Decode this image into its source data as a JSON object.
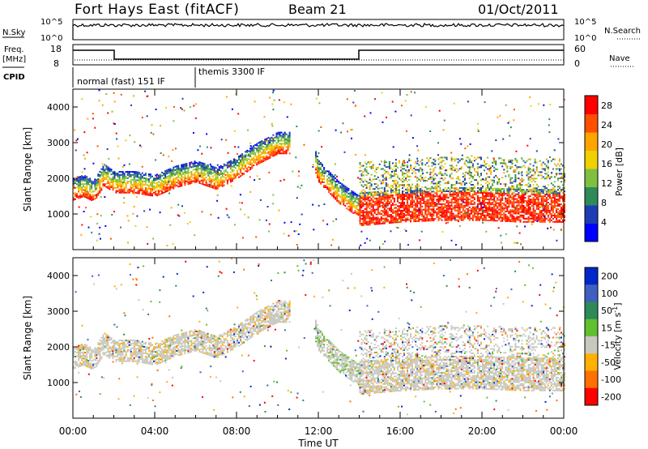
{
  "header": {
    "title": "Fort Hays East (fitACF)",
    "beam": "Beam 21",
    "date": "01/Oct/2011"
  },
  "params": {
    "nsky_label": "N.Sky",
    "nsky_top": "10^5",
    "nsky_bottom": "10^0",
    "nsky_right_top": "10^5",
    "nsky_right_bottom": "10^0",
    "nsearch_label": "N.Search",
    "freq_label": "Freq.",
    "freq_unit": "[MHz]",
    "freq_top": "18",
    "freq_bottom": "8",
    "nave_top": "60",
    "nave_bottom": "0",
    "nave_label": "Nave",
    "cpid_label": "CPID",
    "cpid_1": "normal (fast) 151 IF",
    "cpid_2": "themis 3300 IF"
  },
  "chart_data": [
    {
      "type": "heatmap",
      "panel": "power",
      "ylabel": "Slant Range [km]",
      "xlabel": "Time UT",
      "xlim": [
        0,
        24
      ],
      "ylim": [
        0,
        4500
      ],
      "x_ticks": [
        "00:00",
        "04:00",
        "08:00",
        "12:00",
        "16:00",
        "20:00",
        "00:00"
      ],
      "y_ticks": [
        1000,
        2000,
        3000,
        4000
      ],
      "colorbar_label": "Power [dB]",
      "colorbar_ticks": [
        4,
        8,
        12,
        16,
        20,
        24,
        28
      ],
      "colorbar_range": [
        0,
        30
      ],
      "colors": [
        "#0000ff",
        "#1e3cb4",
        "#2e8b57",
        "#80c040",
        "#f0d000",
        "#ffa500",
        "#ff5000",
        "#ff0000"
      ],
      "echo_band_center_km": {
        "x": [
          0,
          0.5,
          1,
          1.5,
          2,
          3,
          4,
          5,
          6,
          7,
          8,
          9,
          10,
          11.5,
          12,
          13,
          14,
          16,
          18,
          20,
          22,
          24
        ],
        "y": [
          1700,
          1800,
          1650,
          2100,
          1900,
          1900,
          1800,
          2050,
          2200,
          2000,
          2300,
          2700,
          3000,
          3000,
          2200,
          1600,
          1200,
          1300,
          1350,
          1350,
          1300,
          1300
        ]
      }
    },
    {
      "type": "heatmap",
      "panel": "velocity",
      "ylabel": "Slant Range [km]",
      "xlabel": "Time UT",
      "xlim": [
        0,
        24
      ],
      "ylim": [
        0,
        4500
      ],
      "x_ticks": [
        "00:00",
        "04:00",
        "08:00",
        "12:00",
        "16:00",
        "20:00",
        "00:00"
      ],
      "y_ticks": [
        1000,
        2000,
        3000,
        4000
      ],
      "colorbar_label": "Velocity [m s",
      "colorbar_sup": "-1",
      "colorbar_ticks": [
        "200",
        "100",
        "50",
        "15",
        "-15",
        "-50",
        "-100",
        "-200"
      ],
      "colors": [
        "#0028c8",
        "#4060c0",
        "#2e8b57",
        "#60c030",
        "#c8c8c0",
        "#ffb000",
        "#ff7000",
        "#ff0000"
      ]
    }
  ],
  "xaxis_label": "Time UT"
}
